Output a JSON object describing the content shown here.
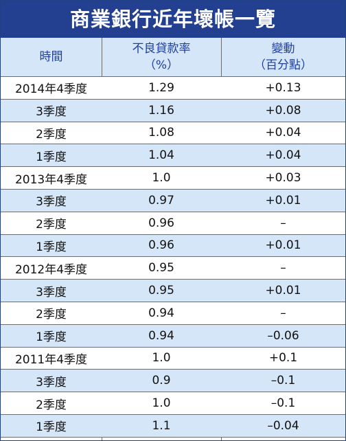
{
  "title": "商業銀行近年壞帳一覽",
  "headers": {
    "col1": "時間",
    "col2_line1": "不良貸款率",
    "col2_line2": "（%）",
    "col3_line1": "變動",
    "col3_line2": "（百分點）"
  },
  "rows": [
    {
      "period": "2014年4季度",
      "rate": "1.29",
      "change": "+0.13"
    },
    {
      "period": "3季度",
      "rate": "1.16",
      "change": "+0.08"
    },
    {
      "period": "2季度",
      "rate": "1.08",
      "change": "+0.04"
    },
    {
      "period": "1季度",
      "rate": "1.04",
      "change": "+0.04"
    },
    {
      "period": "2013年4季度",
      "rate": "1.0",
      "change": "+0.03"
    },
    {
      "period": "3季度",
      "rate": "0.97",
      "change": "+0.01"
    },
    {
      "period": "2季度",
      "rate": "0.96",
      "change": "–"
    },
    {
      "period": "1季度",
      "rate": "0.96",
      "change": "+0.01"
    },
    {
      "period": "2012年4季度",
      "rate": "0.95",
      "change": "–"
    },
    {
      "period": "3季度",
      "rate": "0.95",
      "change": "+0.01"
    },
    {
      "period": "2季度",
      "rate": "0.94",
      "change": "–"
    },
    {
      "period": "1季度",
      "rate": "0.94",
      "change": "–0.06"
    },
    {
      "period": "2011年4季度",
      "rate": "1.0",
      "change": "+0.1"
    },
    {
      "period": "3季度",
      "rate": "0.9",
      "change": "–0.1"
    },
    {
      "period": "2季度",
      "rate": "1.0",
      "change": "–0.1"
    },
    {
      "period": "1季度",
      "rate": "1.1",
      "change": "–0.04"
    }
  ]
}
